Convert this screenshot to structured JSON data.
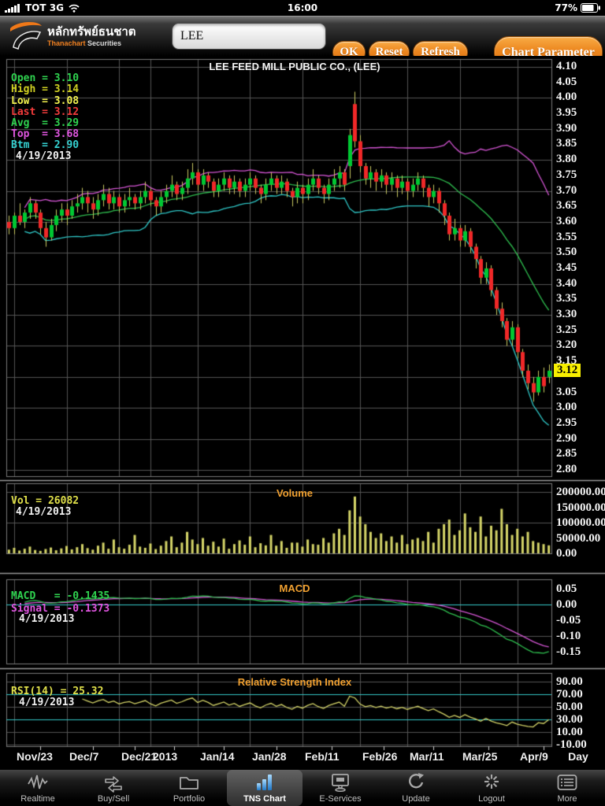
{
  "status_bar": {
    "carrier": "TOT 3G",
    "time": "16:00",
    "battery": "77%"
  },
  "toolbar": {
    "brand_thai": "หลักทรัพย์ธนชาต",
    "brand_en_orange": "Thanachart",
    "brand_en_white": "Securities",
    "symbol_value": "LEE",
    "ok_label": "OK",
    "reset_label": "Reset",
    "refresh_label": "Refresh",
    "chart_parameter_label": "Chart Parameter"
  },
  "chart_data": {
    "type": "candlestick",
    "title": "LEE FEED MILL PUBLIC CO., (LEE)",
    "date": "4/19/2013",
    "legend": {
      "open": "Open = 3.10",
      "high": "High = 3.14",
      "low": "Low  = 3.08",
      "last": "Last = 3.12",
      "avg": "Avg  = 3.29",
      "top": "Top  = 3.68",
      "btm": "Btm  = 2.90",
      "date": "4/19/2013"
    },
    "last_price_tag": "3.12",
    "price_axis_labels": [
      "4.10",
      "4.05",
      "4.00",
      "3.95",
      "3.90",
      "3.85",
      "3.80",
      "3.75",
      "3.70",
      "3.65",
      "3.60",
      "3.55",
      "3.50",
      "3.45",
      "3.40",
      "3.35",
      "3.30",
      "3.25",
      "3.20",
      "3.15",
      "3.05",
      "3.00",
      "2.95",
      "2.90",
      "2.85",
      "2.80"
    ],
    "price_range": {
      "min": 2.8,
      "max": 4.1
    },
    "x_labels": [
      "Nov/23",
      "Dec/7",
      "Dec/21",
      "2013",
      "Jan/14",
      "Jan/28",
      "Feb/11",
      "Feb/26",
      "Mar/11",
      "Mar/25",
      "Apr/9"
    ],
    "x_grid_indices": [
      1,
      11,
      21,
      27,
      36,
      46,
      56,
      67,
      76,
      86,
      97
    ],
    "x_unit": "Day",
    "volume_panel": {
      "title": "Volume",
      "legend": "Vol = 26082",
      "date": "4/19/2013",
      "axis_labels": [
        "200000.00",
        "150000.00",
        "100000.00",
        "50000.00",
        "0.00"
      ],
      "range": [
        0,
        200000
      ]
    },
    "macd_panel": {
      "title": "MACD",
      "macd_legend": "MACD   = -0.1435",
      "signal_legend": "Signal = -0.1373",
      "date": "4/19/2013",
      "axis_labels": [
        "0.05",
        "0.00",
        "-0.05",
        "-0.10",
        "-0.15"
      ],
      "zero_line": 0
    },
    "rsi_panel": {
      "title": "Relative Strength Index",
      "legend": "RSI(14) = 25.32",
      "date": "4/19/2013",
      "axis_labels": [
        "90.00",
        "70.00",
        "50.00",
        "30.00",
        "10.00",
        "-10.00"
      ],
      "ref_lines": [
        70,
        30
      ]
    },
    "colors": {
      "candle_up": "#00c832",
      "candle_down": "#f02828",
      "wick": "#c8c860",
      "volume_bar": "#d4d468",
      "avg_line": "#2fbf4f",
      "top_line": "#d455d4",
      "btm_line": "#2fc8c8",
      "macd_line": "#2fbf4f",
      "signal_line": "#d455d4",
      "rsi_line": "#d4d468",
      "ref_line": "#35c8c8",
      "grid": "#555555",
      "panel_border": "#7a7a7a",
      "separator": "#9a9a9a",
      "title_orange": "#f0a030",
      "last_tag_bg": "#f8ef00"
    },
    "candles": [
      [
        3.6,
        3.62,
        3.56,
        3.58,
        12000
      ],
      [
        3.58,
        3.63,
        3.56,
        3.62,
        18000
      ],
      [
        3.62,
        3.66,
        3.59,
        3.6,
        9000
      ],
      [
        3.6,
        3.64,
        3.58,
        3.63,
        15000
      ],
      [
        3.63,
        3.68,
        3.61,
        3.66,
        22000
      ],
      [
        3.66,
        3.67,
        3.61,
        3.63,
        11000
      ],
      [
        3.63,
        3.64,
        3.56,
        3.58,
        8000
      ],
      [
        3.58,
        3.6,
        3.52,
        3.55,
        14000
      ],
      [
        3.55,
        3.61,
        3.54,
        3.59,
        19000
      ],
      [
        3.59,
        3.64,
        3.57,
        3.62,
        10000
      ],
      [
        3.62,
        3.66,
        3.6,
        3.64,
        16000
      ],
      [
        3.64,
        3.66,
        3.59,
        3.62,
        24000
      ],
      [
        3.62,
        3.67,
        3.61,
        3.65,
        13000
      ],
      [
        3.65,
        3.69,
        3.63,
        3.66,
        20000
      ],
      [
        3.66,
        3.71,
        3.64,
        3.68,
        30000
      ],
      [
        3.68,
        3.7,
        3.63,
        3.66,
        17000
      ],
      [
        3.66,
        3.68,
        3.61,
        3.64,
        12000
      ],
      [
        3.64,
        3.69,
        3.62,
        3.67,
        25000
      ],
      [
        3.67,
        3.72,
        3.65,
        3.69,
        35000
      ],
      [
        3.69,
        3.71,
        3.64,
        3.66,
        15000
      ],
      [
        3.66,
        3.7,
        3.64,
        3.68,
        45000
      ],
      [
        3.68,
        3.69,
        3.63,
        3.65,
        20000
      ],
      [
        3.65,
        3.69,
        3.63,
        3.67,
        15000
      ],
      [
        3.67,
        3.71,
        3.65,
        3.68,
        28000
      ],
      [
        3.68,
        3.69,
        3.64,
        3.66,
        60000
      ],
      [
        3.66,
        3.7,
        3.64,
        3.68,
        22000
      ],
      [
        3.68,
        3.73,
        3.66,
        3.7,
        18000
      ],
      [
        3.7,
        3.71,
        3.65,
        3.67,
        32000
      ],
      [
        3.67,
        3.68,
        3.62,
        3.65,
        14000
      ],
      [
        3.65,
        3.7,
        3.63,
        3.68,
        25000
      ],
      [
        3.68,
        3.72,
        3.66,
        3.7,
        40000
      ],
      [
        3.7,
        3.75,
        3.68,
        3.72,
        55000
      ],
      [
        3.72,
        3.73,
        3.67,
        3.69,
        20000
      ],
      [
        3.69,
        3.73,
        3.67,
        3.71,
        35000
      ],
      [
        3.71,
        3.77,
        3.69,
        3.74,
        70000
      ],
      [
        3.74,
        3.79,
        3.72,
        3.76,
        45000
      ],
      [
        3.76,
        3.77,
        3.7,
        3.72,
        30000
      ],
      [
        3.72,
        3.77,
        3.7,
        3.75,
        50000
      ],
      [
        3.75,
        3.76,
        3.71,
        3.73,
        25000
      ],
      [
        3.73,
        3.74,
        3.68,
        3.7,
        38000
      ],
      [
        3.7,
        3.74,
        3.68,
        3.72,
        22000
      ],
      [
        3.72,
        3.76,
        3.7,
        3.74,
        48000
      ],
      [
        3.74,
        3.75,
        3.69,
        3.71,
        15000
      ],
      [
        3.71,
        3.75,
        3.69,
        3.73,
        30000
      ],
      [
        3.73,
        3.74,
        3.68,
        3.7,
        42000
      ],
      [
        3.7,
        3.74,
        3.68,
        3.72,
        28000
      ],
      [
        3.72,
        3.76,
        3.7,
        3.74,
        55000
      ],
      [
        3.74,
        3.75,
        3.69,
        3.71,
        20000
      ],
      [
        3.71,
        3.72,
        3.66,
        3.69,
        33000
      ],
      [
        3.69,
        3.74,
        3.67,
        3.72,
        26000
      ],
      [
        3.72,
        3.76,
        3.7,
        3.74,
        60000
      ],
      [
        3.74,
        3.75,
        3.69,
        3.71,
        25000
      ],
      [
        3.71,
        3.75,
        3.69,
        3.73,
        40000
      ],
      [
        3.73,
        3.74,
        3.68,
        3.7,
        18000
      ],
      [
        3.7,
        3.71,
        3.65,
        3.68,
        35000
      ],
      [
        3.68,
        3.73,
        3.66,
        3.71,
        35000
      ],
      [
        3.71,
        3.72,
        3.66,
        3.69,
        22000
      ],
      [
        3.69,
        3.74,
        3.67,
        3.72,
        45000
      ],
      [
        3.72,
        3.77,
        3.7,
        3.74,
        30000
      ],
      [
        3.74,
        3.75,
        3.69,
        3.71,
        28000
      ],
      [
        3.71,
        3.72,
        3.66,
        3.69,
        50000
      ],
      [
        3.69,
        3.74,
        3.67,
        3.72,
        35000
      ],
      [
        3.72,
        3.77,
        3.7,
        3.74,
        65000
      ],
      [
        3.74,
        3.78,
        3.71,
        3.76,
        80000
      ],
      [
        3.76,
        3.77,
        3.7,
        3.72,
        60000
      ],
      [
        3.78,
        3.9,
        3.74,
        3.88,
        140000
      ],
      [
        3.98,
        4.02,
        3.84,
        3.86,
        185000
      ],
      [
        3.86,
        3.88,
        3.76,
        3.78,
        120000
      ],
      [
        3.78,
        3.79,
        3.72,
        3.74,
        95000
      ],
      [
        3.74,
        3.78,
        3.71,
        3.76,
        70000
      ],
      [
        3.76,
        3.77,
        3.7,
        3.73,
        50000
      ],
      [
        3.73,
        3.77,
        3.71,
        3.75,
        65000
      ],
      [
        3.75,
        3.76,
        3.69,
        3.72,
        40000
      ],
      [
        3.72,
        3.76,
        3.7,
        3.74,
        55000
      ],
      [
        3.74,
        3.75,
        3.68,
        3.71,
        35000
      ],
      [
        3.71,
        3.75,
        3.69,
        3.73,
        60000
      ],
      [
        3.73,
        3.74,
        3.67,
        3.7,
        30000
      ],
      [
        3.7,
        3.74,
        3.68,
        3.72,
        45000
      ],
      [
        3.72,
        3.76,
        3.7,
        3.74,
        50000
      ],
      [
        3.74,
        3.75,
        3.68,
        3.71,
        40000
      ],
      [
        3.71,
        3.72,
        3.65,
        3.68,
        70000
      ],
      [
        3.68,
        3.72,
        3.66,
        3.7,
        35000
      ],
      [
        3.7,
        3.71,
        3.63,
        3.66,
        80000
      ],
      [
        3.66,
        3.67,
        3.59,
        3.62,
        95000
      ],
      [
        3.62,
        3.63,
        3.54,
        3.56,
        110000
      ],
      [
        3.56,
        3.61,
        3.54,
        3.58,
        60000
      ],
      [
        3.58,
        3.59,
        3.52,
        3.54,
        75000
      ],
      [
        3.54,
        3.59,
        3.52,
        3.57,
        130000
      ],
      [
        3.57,
        3.58,
        3.5,
        3.52,
        85000
      ],
      [
        3.52,
        3.53,
        3.45,
        3.48,
        70000
      ],
      [
        3.48,
        3.49,
        3.4,
        3.42,
        120000
      ],
      [
        3.42,
        3.47,
        3.4,
        3.45,
        55000
      ],
      [
        3.45,
        3.46,
        3.36,
        3.38,
        90000
      ],
      [
        3.38,
        3.39,
        3.3,
        3.32,
        75000
      ],
      [
        3.32,
        3.34,
        3.26,
        3.28,
        145000
      ],
      [
        3.28,
        3.29,
        3.2,
        3.22,
        95000
      ],
      [
        3.22,
        3.28,
        3.2,
        3.26,
        60000
      ],
      [
        3.26,
        3.27,
        3.16,
        3.18,
        80000
      ],
      [
        3.18,
        3.19,
        3.1,
        3.12,
        55000
      ],
      [
        3.12,
        3.14,
        3.06,
        3.08,
        70000
      ],
      [
        3.08,
        3.1,
        3.02,
        3.05,
        40000
      ],
      [
        3.05,
        3.12,
        3.04,
        3.1,
        35000
      ],
      [
        3.1,
        3.13,
        3.05,
        3.07,
        30000
      ],
      [
        3.1,
        3.14,
        3.08,
        3.12,
        26082
      ]
    ]
  },
  "tab_bar": {
    "items": [
      {
        "label": "Realtime",
        "icon": "waveform-icon",
        "active": false
      },
      {
        "label": "Buy/Sell",
        "icon": "arrows-icon",
        "active": false
      },
      {
        "label": "Portfolio",
        "icon": "folder-icon",
        "active": false
      },
      {
        "label": "TNS Chart",
        "icon": "bar-chart-icon",
        "active": true
      },
      {
        "label": "E-Services",
        "icon": "monitor-icon",
        "active": false
      },
      {
        "label": "Update",
        "icon": "refresh-icon",
        "active": false
      },
      {
        "label": "Logout",
        "icon": "starburst-icon",
        "active": false
      },
      {
        "label": "More",
        "icon": "list-icon",
        "active": false
      }
    ]
  }
}
